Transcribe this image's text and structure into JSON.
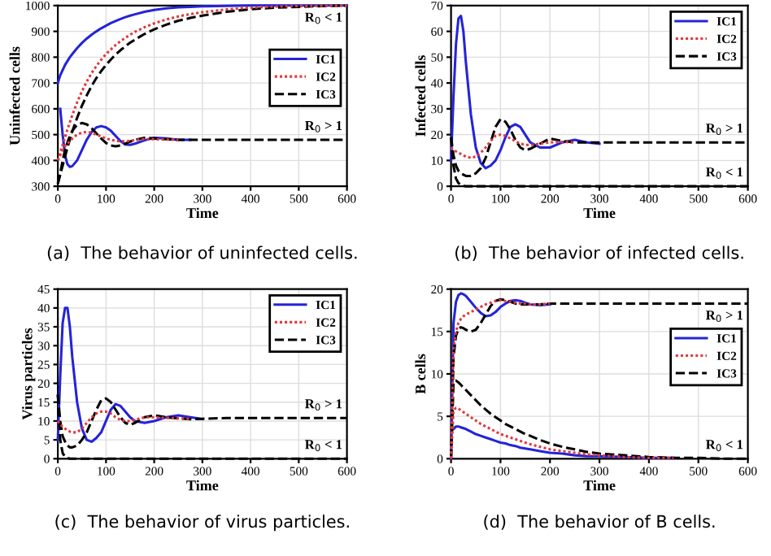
{
  "chart_data": [
    {
      "type": "line",
      "title": "(a)  The behavior of uninfected cells.",
      "xlabel": "Time",
      "ylabel": "Uninfected cells",
      "x": [
        0,
        5,
        10,
        15,
        20,
        25,
        30,
        40,
        50,
        60,
        70,
        80,
        90,
        100,
        110,
        120,
        130,
        140,
        150,
        160,
        180,
        200,
        225,
        250,
        275,
        300,
        350,
        400,
        450,
        500,
        550,
        600
      ],
      "xlim": [
        0,
        600
      ],
      "ylim": [
        300,
        1000
      ],
      "xticks": [
        0,
        100,
        200,
        300,
        400,
        500,
        600
      ],
      "yticks": [
        300,
        400,
        500,
        600,
        700,
        800,
        900,
        1000
      ],
      "grid": true,
      "legend": "right",
      "series": [
        {
          "name": "IC1",
          "color": "#2424d8",
          "line_style": "solid",
          "values": [
            700,
            730,
            750,
            770,
            785,
            800,
            812,
            835,
            855,
            872,
            887,
            900,
            912,
            922,
            932,
            940,
            948,
            955,
            961,
            966,
            976,
            983,
            989,
            993,
            995,
            997,
            999,
            1000,
            1000,
            1000,
            1000,
            1000
          ]
        },
        {
          "name": "IC2",
          "color": "#e03a3a",
          "line_style": "dotted",
          "values": [
            400,
            430,
            460,
            490,
            520,
            548,
            575,
            625,
            668,
            705,
            738,
            766,
            790,
            812,
            830,
            847,
            862,
            875,
            887,
            898,
            916,
            931,
            946,
            958,
            967,
            974,
            985,
            992,
            996,
            998,
            999,
            1000
          ]
        },
        {
          "name": "IC3",
          "color": "#000000",
          "line_style": "dashed",
          "values": [
            310,
            345,
            380,
            415,
            450,
            482,
            512,
            565,
            612,
            652,
            688,
            719,
            746,
            770,
            791,
            810,
            827,
            842,
            856,
            868,
            890,
            908,
            926,
            941,
            952,
            961,
            976,
            986,
            992,
            995,
            998,
            1000
          ]
        },
        {
          "color": "#2424d8",
          "line_style": "solid",
          "values": [
            null,
            600,
            500,
            420,
            385,
            375,
            378,
            400,
            440,
            480,
            510,
            528,
            533,
            528,
            515,
            495,
            475,
            462,
            460,
            465,
            478,
            488,
            485,
            480,
            480,
            null,
            null,
            null,
            null,
            null,
            null,
            null
          ]
        },
        {
          "color": "#e03a3a",
          "line_style": "dotted",
          "values": [
            400,
            420,
            440,
            455,
            465,
            475,
            485,
            500,
            508,
            510,
            507,
            500,
            493,
            485,
            480,
            476,
            474,
            474,
            476,
            479,
            483,
            482,
            481,
            480,
            null,
            null,
            null,
            null,
            null,
            null,
            null,
            null
          ]
        },
        {
          "color": "#000000",
          "line_style": "dashed",
          "values": [
            310,
            350,
            400,
            440,
            470,
            495,
            515,
            538,
            545,
            540,
            525,
            505,
            485,
            468,
            458,
            455,
            458,
            465,
            473,
            480,
            488,
            485,
            482,
            480,
            480,
            480,
            480,
            480,
            480,
            480,
            480,
            480
          ]
        }
      ],
      "annotations": [
        "R$_{0}$ < 1",
        "R$_{0}$ > 1"
      ]
    },
    {
      "type": "line",
      "title": "(b)  The behavior of infected cells.",
      "xlabel": "Time",
      "ylabel": "Infected cells",
      "x": [
        0,
        5,
        10,
        15,
        20,
        25,
        30,
        40,
        50,
        60,
        70,
        80,
        90,
        100,
        110,
        120,
        130,
        140,
        150,
        160,
        180,
        200,
        225,
        250,
        275,
        300,
        350,
        400,
        450,
        500,
        550,
        600
      ],
      "xlim": [
        0,
        600
      ],
      "ylim": [
        0,
        70
      ],
      "xticks": [
        0,
        100,
        200,
        300,
        400,
        500,
        600
      ],
      "yticks": [
        0,
        10,
        20,
        30,
        40,
        50,
        60,
        70
      ],
      "grid": true,
      "legend": "top right",
      "series": [
        {
          "name": "IC1",
          "color": "#2424d8",
          "line_style": "solid",
          "values": [
            10,
            35,
            55,
            65,
            66,
            60,
            48,
            28,
            15,
            9,
            7,
            8,
            10,
            14,
            19,
            23,
            24,
            23,
            20,
            17,
            15,
            15,
            17,
            18,
            17,
            16.5,
            null,
            null,
            null,
            null,
            null,
            null
          ]
        },
        {
          "name": "IC2",
          "color": "#e03a3a",
          "line_style": "dotted",
          "values": [
            15,
            14,
            13.5,
            13,
            12.5,
            12,
            11.5,
            11,
            11.5,
            13,
            15,
            17.5,
            19.5,
            20,
            19.5,
            18.5,
            17.5,
            16.5,
            16,
            16,
            16.5,
            17,
            17.2,
            17,
            null,
            null,
            null,
            null,
            null,
            null,
            null,
            null
          ]
        },
        {
          "name": "IC3",
          "color": "#000000",
          "line_style": "dashed",
          "values": [
            19,
            12,
            8,
            6,
            5,
            4.5,
            4,
            4,
            5,
            7,
            11,
            17,
            23,
            26,
            25,
            22,
            18,
            15,
            14,
            14.5,
            16.5,
            18.5,
            17.5,
            17,
            17,
            17,
            17,
            17,
            17,
            17,
            17,
            17
          ]
        },
        {
          "color": "#000000",
          "line_style": "dashed",
          "values": [
            19,
            8,
            3,
            1.2,
            0.5,
            0.2,
            0,
            0,
            0,
            0,
            0,
            0,
            0,
            0,
            0,
            0,
            0,
            0,
            0,
            0,
            0,
            0,
            0,
            0,
            0,
            0,
            0,
            0,
            0,
            0,
            0,
            0
          ]
        }
      ],
      "annotations": [
        "R$_{0}$ > 1",
        "R$_{0}$ < 1"
      ]
    },
    {
      "type": "line",
      "title": "(c)  The behavior of virus particles.",
      "xlabel": "Time",
      "ylabel": "Virus particles",
      "x": [
        0,
        5,
        10,
        15,
        20,
        25,
        30,
        40,
        50,
        60,
        70,
        80,
        90,
        100,
        110,
        120,
        130,
        140,
        150,
        160,
        180,
        200,
        225,
        250,
        275,
        300,
        350,
        400,
        450,
        500,
        550,
        600
      ],
      "xlim": [
        0,
        600
      ],
      "ylim": [
        0,
        45
      ],
      "xticks": [
        0,
        100,
        200,
        300,
        400,
        500,
        600
      ],
      "yticks": [
        0,
        5,
        10,
        15,
        20,
        25,
        30,
        35,
        40,
        45
      ],
      "grid": true,
      "legend": "top right",
      "series": [
        {
          "name": "IC1",
          "color": "#2424d8",
          "line_style": "solid",
          "values": [
            5,
            22,
            36,
            40,
            40,
            35,
            27,
            15,
            8,
            5,
            4.5,
            5.5,
            7,
            10,
            13,
            14.5,
            14,
            12.5,
            11,
            10,
            9.5,
            10,
            11,
            11.5,
            11,
            10.5,
            null,
            null,
            null,
            null,
            null,
            null
          ]
        },
        {
          "name": "IC2",
          "color": "#e03a3a",
          "line_style": "dotted",
          "values": [
            10,
            9,
            8.5,
            8,
            7.5,
            7.2,
            7,
            7,
            8,
            9.5,
            11,
            12,
            12.5,
            12.5,
            12,
            11,
            10.3,
            10,
            10,
            10.3,
            11,
            11,
            10.8,
            10.7,
            10.6,
            null,
            null,
            null,
            null,
            null,
            null,
            null
          ]
        },
        {
          "name": "IC3",
          "color": "#000000",
          "line_style": "dashed",
          "values": [
            17,
            10,
            6,
            4.5,
            3.5,
            3,
            3,
            3.5,
            5,
            7,
            10,
            13,
            15.5,
            16,
            15,
            13,
            11,
            9.5,
            9,
            9.5,
            11,
            11.5,
            11,
            10.7,
            10.5,
            10.6,
            10.8,
            10.8,
            10.8,
            10.8,
            10.8,
            10.8
          ]
        },
        {
          "color": "#000000",
          "line_style": "dashed",
          "values": [
            17,
            5,
            1.5,
            0.5,
            0.2,
            0,
            0,
            0,
            0,
            0,
            0,
            0,
            0,
            0,
            0,
            0,
            0,
            0,
            0,
            0,
            0,
            0,
            0,
            0,
            0,
            0,
            0,
            0,
            0,
            0,
            0,
            0
          ]
        }
      ],
      "annotations": [
        "R$_{0}$ > 1",
        "R$_{0}$ < 1"
      ]
    },
    {
      "type": "line",
      "title": "(d)  The behavior of B cells.",
      "xlabel": "Time",
      "ylabel": "B cells",
      "x": [
        0,
        5,
        10,
        15,
        20,
        25,
        30,
        40,
        50,
        60,
        70,
        80,
        90,
        100,
        110,
        120,
        130,
        140,
        150,
        160,
        180,
        200,
        225,
        250,
        275,
        300,
        350,
        400,
        450,
        500,
        550,
        600
      ],
      "xlim": [
        0,
        600
      ],
      "ylim": [
        0,
        20
      ],
      "xticks": [
        0,
        100,
        200,
        300,
        400,
        500,
        600
      ],
      "yticks": [
        0,
        5,
        10,
        15,
        20
      ],
      "grid": true,
      "legend": "right",
      "series": [
        {
          "name": "IC1",
          "color": "#2424d8",
          "line_style": "solid",
          "values": [
            0,
            16,
            18.5,
            19.3,
            19.5,
            19.4,
            19.2,
            18.5,
            17.8,
            17.2,
            16.8,
            16.9,
            17.3,
            17.9,
            18.3,
            18.6,
            18.7,
            18.6,
            18.4,
            18.2,
            18.1,
            18.2,
            null,
            null,
            null,
            null,
            null,
            null,
            null,
            null,
            null,
            null
          ]
        },
        {
          "name": "IC2",
          "color": "#e03a3a",
          "line_style": "dotted",
          "values": [
            0,
            13,
            15,
            16,
            16.5,
            16.8,
            17,
            17.3,
            17.6,
            17.9,
            18.2,
            18.4,
            18.6,
            18.7,
            18.6,
            18.5,
            18.4,
            18.3,
            18.3,
            18.2,
            18.2,
            18.3,
            null,
            null,
            null,
            null,
            null,
            null,
            null,
            null,
            null,
            null
          ]
        },
        {
          "name": "IC3",
          "color": "#000000",
          "line_style": "dashed",
          "values": [
            0,
            12,
            14.5,
            15.3,
            15.5,
            15.4,
            15.2,
            15,
            15.2,
            16,
            17,
            18,
            18.6,
            18.8,
            18.7,
            18.5,
            18.3,
            18.2,
            18.2,
            18.2,
            18.2,
            18.3,
            18.3,
            18.3,
            18.3,
            18.3,
            18.3,
            18.3,
            18.3,
            18.3,
            18.3,
            18.3
          ]
        },
        {
          "color": "#2424d8",
          "line_style": "solid",
          "values": [
            null,
            3.5,
            3.8,
            3.8,
            3.7,
            3.6,
            3.5,
            3.2,
            2.9,
            2.7,
            2.5,
            2.3,
            2.1,
            1.9,
            1.8,
            1.6,
            1.5,
            1.3,
            1.2,
            1.1,
            0.9,
            0.7,
            0.6,
            0.4,
            0.3,
            0.3,
            0.2,
            0.1,
            0.1,
            null,
            null,
            null
          ]
        },
        {
          "color": "#e03a3a",
          "line_style": "dotted",
          "values": [
            0,
            5.7,
            6,
            5.9,
            5.7,
            5.5,
            5.3,
            4.9,
            4.5,
            4.1,
            3.8,
            3.5,
            3.2,
            2.9,
            2.7,
            2.5,
            2.3,
            2.1,
            1.9,
            1.7,
            1.4,
            1.1,
            0.9,
            0.7,
            0.5,
            0.4,
            0.2,
            0.1,
            0.1,
            null,
            null,
            null
          ]
        },
        {
          "color": "#000000",
          "line_style": "dashed",
          "values": [
            0,
            9,
            9.2,
            9,
            8.7,
            8.4,
            8.1,
            7.5,
            6.9,
            6.3,
            5.8,
            5.3,
            4.9,
            4.5,
            4.1,
            3.8,
            3.5,
            3.2,
            2.9,
            2.7,
            2.2,
            1.8,
            1.4,
            1.1,
            0.8,
            0.6,
            0.4,
            0.2,
            0.1,
            0.1,
            0,
            0
          ]
        }
      ],
      "annotations": [
        "R$_{0}$ > 1",
        "R$_{0}$ < 1"
      ]
    }
  ]
}
